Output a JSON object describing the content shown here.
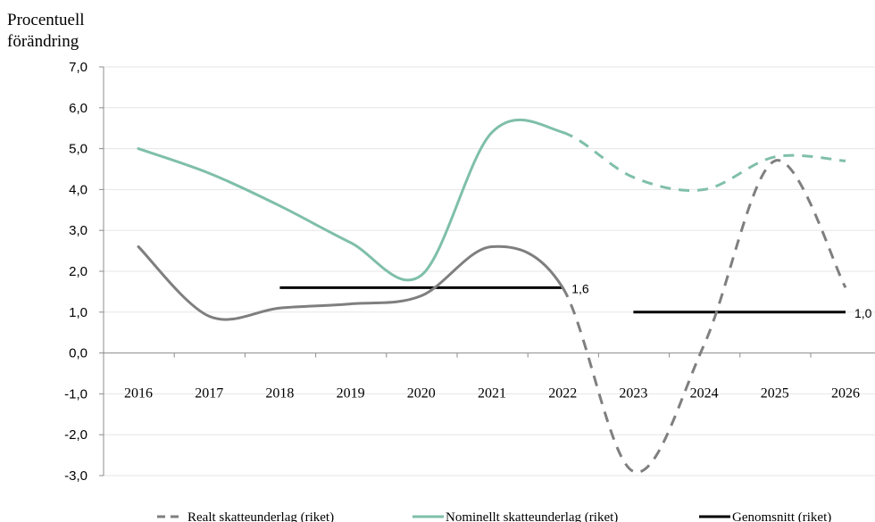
{
  "chart_data": {
    "type": "line",
    "ylabel_line1": "Procentuell",
    "ylabel_line2": "förändring",
    "categories": [
      "2016",
      "2017",
      "2018",
      "2019",
      "2020",
      "2021",
      "2022",
      "2023",
      "2024",
      "2025",
      "2026"
    ],
    "ylim": [
      -3.0,
      7.0
    ],
    "yticks": [
      "7,0",
      "6,0",
      "5,0",
      "4,0",
      "3,0",
      "2,0",
      "1,0",
      "0,0",
      "-1,0",
      "-2,0",
      "-3,0"
    ],
    "grid": true,
    "legend_position": "bottom",
    "series": [
      {
        "name": "Realt skatteunderlag (riket)",
        "color": "#7f7f7f",
        "values": [
          2.6,
          0.9,
          1.1,
          1.2,
          1.4,
          2.6,
          1.6,
          -2.9,
          0.2,
          4.7,
          1.6
        ],
        "solid_until_index": 6,
        "dashed_after": true
      },
      {
        "name": "Nominellt skatteunderlag (riket)",
        "color": "#7fbfa9",
        "values": [
          5.0,
          4.4,
          3.6,
          2.7,
          1.9,
          5.4,
          5.4,
          4.3,
          4.0,
          4.8,
          4.7
        ],
        "solid_until_index": 6,
        "dashed_after": true
      }
    ],
    "averages": {
      "name": "Genomsnitt (riket)",
      "color": "#000000",
      "segments": [
        {
          "x_start": 2018,
          "x_end": 2022,
          "value": 1.6,
          "label": "1,6"
        },
        {
          "x_start": 2023,
          "x_end": 2026,
          "value": 1.0,
          "label": "1,0"
        }
      ]
    }
  }
}
